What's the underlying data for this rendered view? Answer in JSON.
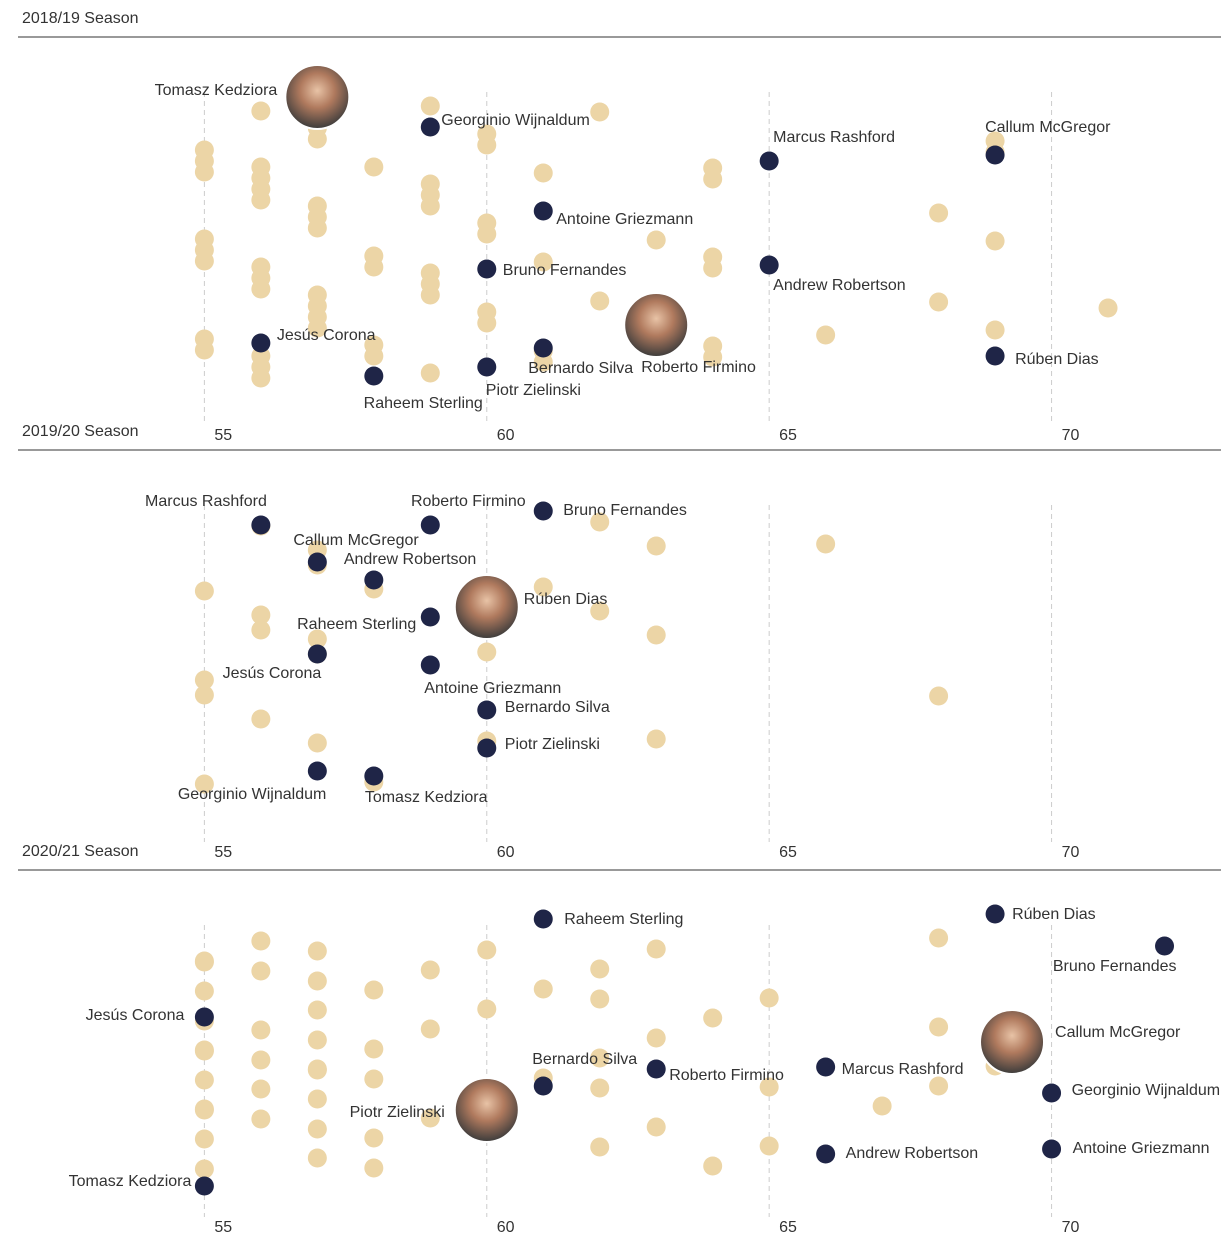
{
  "chart_data": [
    {
      "type": "strip",
      "title": "2018/19 Season",
      "xlim": [
        51.7,
        73
      ],
      "xticks": [
        55,
        60,
        65,
        70
      ],
      "grid": true,
      "highlight_color": "#1f2547",
      "color": "#ecd5a6",
      "players": [
        {
          "name": "Tomasz Kedziora",
          "value": 57,
          "photo": true
        },
        {
          "name": "Georginio Wijnaldum",
          "value": 59
        },
        {
          "name": "Marcus Rashford",
          "value": 65
        },
        {
          "name": "Callum McGregor",
          "value": 69
        },
        {
          "name": "Antoine Griezmann",
          "value": 61
        },
        {
          "name": "Bruno Fernandes",
          "value": 60
        },
        {
          "name": "Andrew Robertson",
          "value": 65
        },
        {
          "name": "Jesús Corona",
          "value": 56
        },
        {
          "name": "Roberto Firmino",
          "value": 63,
          "photo": true
        },
        {
          "name": "Bernardo Silva",
          "value": 61
        },
        {
          "name": "Rúben Dias",
          "value": 69
        },
        {
          "name": "Piotr Zielinski",
          "value": 60
        },
        {
          "name": "Raheem Sterling",
          "value": 58
        }
      ],
      "others": [
        55,
        55,
        55,
        55,
        55,
        55,
        55,
        55,
        56,
        56,
        56,
        56,
        56,
        56,
        56,
        56,
        56,
        56,
        56,
        57,
        57,
        57,
        57,
        57,
        57,
        57,
        57,
        57,
        57,
        57,
        58,
        58,
        58,
        58,
        58,
        59,
        59,
        59,
        59,
        59,
        59,
        59,
        59,
        60,
        60,
        60,
        60,
        60,
        60,
        61,
        61,
        61,
        61,
        62,
        62,
        63,
        63,
        64,
        64,
        64,
        64,
        64,
        64,
        66,
        68,
        68,
        69,
        69,
        69,
        69,
        71
      ]
    },
    {
      "type": "strip",
      "title": "2019/20 Season",
      "xlim": [
        51.7,
        73
      ],
      "xticks": [
        55,
        60,
        65,
        70
      ],
      "grid": true,
      "highlight_color": "#1f2547",
      "color": "#ecd5a6",
      "players": [
        {
          "name": "Marcus Rashford",
          "value": 56
        },
        {
          "name": "Roberto Firmino",
          "value": 59
        },
        {
          "name": "Bruno Fernandes",
          "value": 61
        },
        {
          "name": "Callum McGregor",
          "value": 57
        },
        {
          "name": "Andrew Robertson",
          "value": 58
        },
        {
          "name": "Rúben Dias",
          "value": 60,
          "photo": true
        },
        {
          "name": "Raheem Sterling",
          "value": 59
        },
        {
          "name": "Jesús Corona",
          "value": 57
        },
        {
          "name": "Antoine Griezmann",
          "value": 59
        },
        {
          "name": "Bernardo Silva",
          "value": 60
        },
        {
          "name": "Piotr Zielinski",
          "value": 60
        },
        {
          "name": "Georginio Wijnaldum",
          "value": 57
        },
        {
          "name": "Tomasz Kedziora",
          "value": 58
        }
      ],
      "others": [
        55,
        55,
        55,
        55,
        56,
        56,
        56,
        56,
        57,
        57,
        57,
        57,
        57,
        58,
        58,
        60,
        60,
        61,
        62,
        62,
        63,
        63,
        63,
        66,
        68
      ]
    },
    {
      "type": "strip",
      "title": "2020/21 Season",
      "xlim": [
        51.7,
        73
      ],
      "xticks": [
        55,
        60,
        65,
        70
      ],
      "grid": true,
      "highlight_color": "#1f2547",
      "color": "#ecd5a6",
      "players": [
        {
          "name": "Raheem Sterling",
          "value": 61
        },
        {
          "name": "Rúben Dias",
          "value": 69
        },
        {
          "name": "Bruno Fernandes",
          "value": 72
        },
        {
          "name": "Jesús Corona",
          "value": 55
        },
        {
          "name": "Callum McGregor",
          "value": 69.3,
          "photo": true
        },
        {
          "name": "Bernardo Silva",
          "value": 61
        },
        {
          "name": "Roberto Firmino",
          "value": 63
        },
        {
          "name": "Marcus Rashford",
          "value": 66
        },
        {
          "name": "Georginio Wijnaldum",
          "value": 70
        },
        {
          "name": "Piotr Zielinski",
          "value": 60,
          "photo": true
        },
        {
          "name": "Andrew Robertson",
          "value": 66
        },
        {
          "name": "Antoine Griezmann",
          "value": 70
        },
        {
          "name": "Tomasz Kedziora",
          "value": 55
        }
      ],
      "others": [
        55,
        55,
        55,
        55,
        55,
        55,
        55,
        55,
        55,
        55,
        55,
        56,
        56,
        56,
        56,
        56,
        56,
        57,
        57,
        57,
        57,
        57,
        57,
        57,
        57,
        57,
        58,
        58,
        58,
        58,
        58,
        59,
        59,
        59,
        60,
        60,
        60,
        61,
        61,
        62,
        62,
        62,
        62,
        62,
        63,
        63,
        63,
        64,
        64,
        65,
        65,
        65,
        67,
        68,
        68,
        68,
        69
      ]
    }
  ]
}
